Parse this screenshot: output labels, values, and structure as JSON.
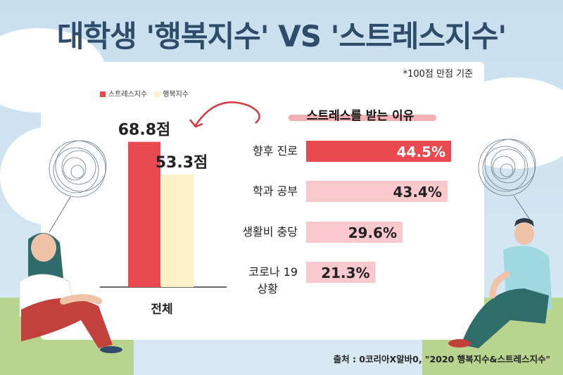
{
  "title": "대학생 '행복지수' VS '스트레스지수'",
  "note": "*100점 만점 기준",
  "source": "출처 : 0코리아X알바0, \"2020 행복지수&스트레스지수\"",
  "colors": {
    "stress": "#e94a4f",
    "happiness": "#fcf1c7",
    "reason_bar": "#f9c9cd",
    "reason_top": "#e94a4f",
    "title": "#2f4c6b"
  },
  "chart_data": [
    {
      "type": "bar",
      "categories": [
        "전체"
      ],
      "series": [
        {
          "name": "스트레스지수",
          "values": [
            68.8
          ],
          "labels": [
            "68.8점"
          ]
        },
        {
          "name": "행복지수",
          "values": [
            53.3
          ],
          "labels": [
            "53.3점"
          ]
        }
      ],
      "ylim": [
        0,
        100
      ],
      "legend": "top-left"
    },
    {
      "type": "bar",
      "orientation": "horizontal",
      "title": "스트레스를 받는 이유",
      "categories": [
        "향후 진로",
        "학과 공부",
        "생활비 충당",
        "코로나 19 상황"
      ],
      "values": [
        44.5,
        43.4,
        29.6,
        21.3
      ],
      "labels": [
        "44.5%",
        "43.4%",
        "29.6%",
        "21.3%"
      ]
    }
  ]
}
